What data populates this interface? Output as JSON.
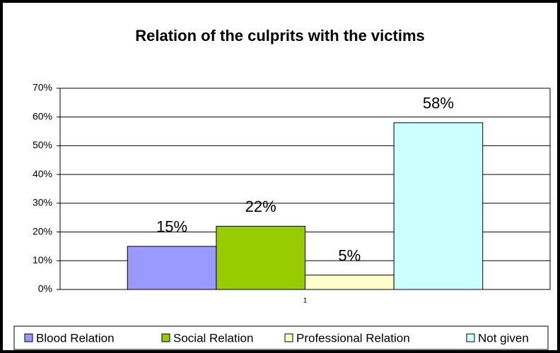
{
  "chart_data": {
    "type": "bar",
    "title": "Relation of the culprits with the victims",
    "categories": [
      "1"
    ],
    "series": [
      {
        "name": "Blood Relation",
        "color": "#9999ff",
        "values": [
          15
        ],
        "value_labels": [
          "15%"
        ]
      },
      {
        "name": "Social Relation",
        "color": "#99cc00",
        "values": [
          22
        ],
        "value_labels": [
          "22%"
        ]
      },
      {
        "name": "Professional Relation",
        "color": "#ffffcc",
        "values": [
          5
        ],
        "value_labels": [
          "5%"
        ]
      },
      {
        "name": "Not given",
        "color": "#ccffff",
        "values": [
          58
        ],
        "value_labels": [
          "58%"
        ]
      }
    ],
    "ylim": [
      0,
      70
    ],
    "yticks": [
      {
        "value": 0,
        "label": "0%"
      },
      {
        "value": 10,
        "label": "10%"
      },
      {
        "value": 20,
        "label": "20%"
      },
      {
        "value": 30,
        "label": "30%"
      },
      {
        "value": 40,
        "label": "40%"
      },
      {
        "value": 50,
        "label": "50%"
      },
      {
        "value": 60,
        "label": "60%"
      },
      {
        "value": 70,
        "label": "70%"
      }
    ],
    "grid": true,
    "legend": "bottom"
  }
}
